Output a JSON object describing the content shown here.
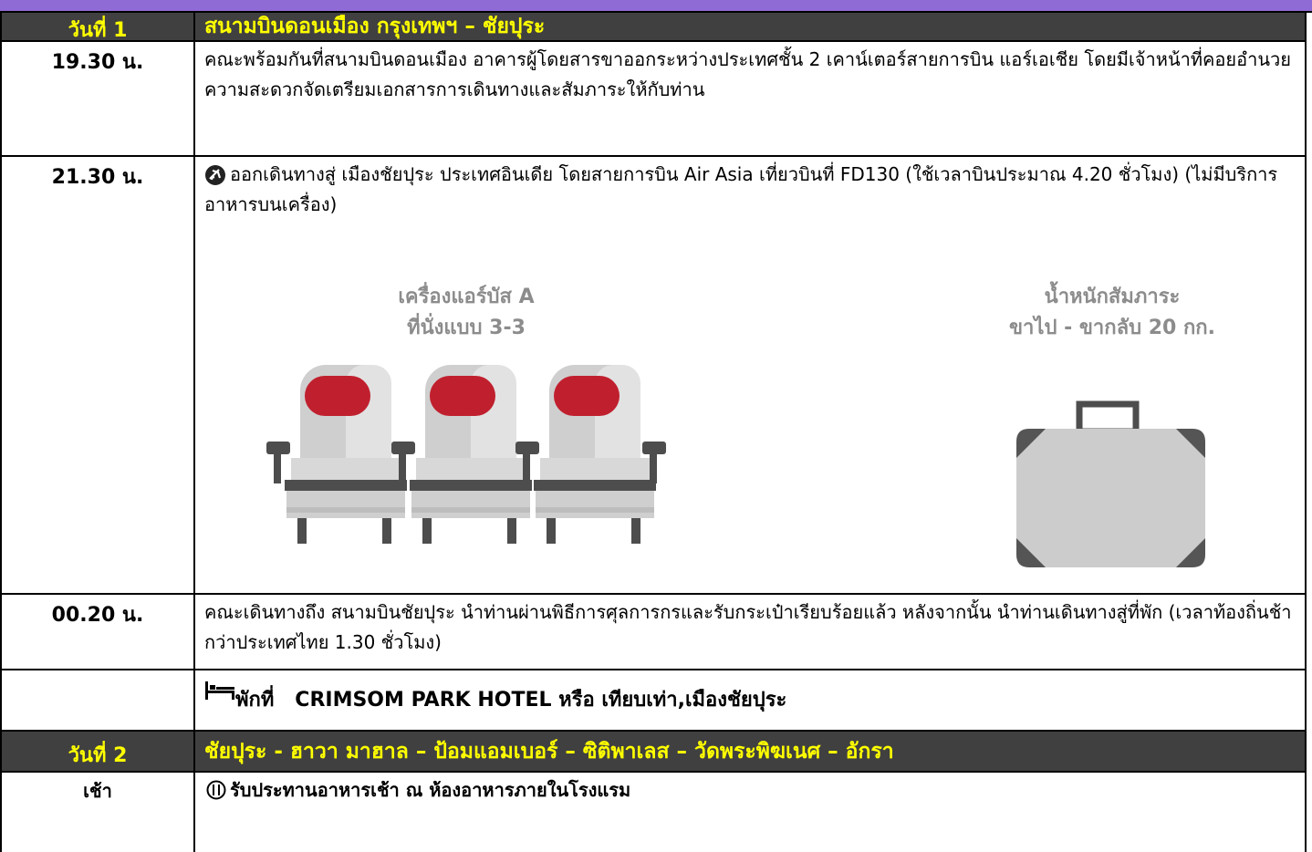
{
  "days": [
    {
      "label": "วันที่ 1",
      "title": "สนามบินดอนเมือง กรุงเทพฯ – ชัยปุระ",
      "rows": [
        {
          "time": "19.30 น.",
          "text": "คณะพร้อมกันที่สนามบินดอนเมือง อาคารผู้โดยสารขาออกระหว่างประเทศชั้น 2 เคาน์เตอร์สายการบิน แอร์เอเชีย โดยมีเจ้าหน้าที่คอยอำนวยความสะดวกจัดเตรียมเอกสารการเดินทางและสัมภาระให้กับท่าน"
        },
        {
          "time": "21.30 น.",
          "text": "ออกเดินทางสู่ เมืองชัยปุระ ประเทศอินเดีย โดยสายการบิน Air Asia เที่ยวบินที่ FD130 (ใช้เวลาบินประมาณ 4.20 ชั่วโมง)   (ไม่มีบริการอาหารบนเครื่อง)",
          "aircraft": [
            "เครื่องแอร์บัส A",
            "ที่นั่งแบบ 3-3"
          ],
          "baggage": [
            "น้ำหนักสัมภาระ",
            "ขาไป - ขากลับ 20 กก."
          ]
        },
        {
          "time": "00.20 น.",
          "text": "คณะเดินทางถึง สนามบินชัยปุระ นำท่านผ่านพิธีการศุลการกรและรับกระเป๋าเรียบร้อยแล้ว หลังจากนั้น นำท่านเดินทางสู่ที่พัก (เวลาท้องถิ่นช้ากว่าประเทศไทย 1.30 ชั่วโมง)"
        },
        {
          "text": "พักที่   CRIMSOM PARK HOTEL หรือ เทียบเท่า,เมืองชัยปุระ"
        }
      ]
    },
    {
      "label": "วันที่ 2",
      "title": "ชัยปุระ - ฮาวา มาฮาล – ป้อมแอมเบอร์ – ซิติพาเลส – วัดพระพิฆเนศ – อักรา",
      "rows": [
        {
          "time": "เช้า",
          "text": "รับประทานอาหารเช้า ณ ห้องอาหารภายในโรงแรม"
        }
      ]
    }
  ]
}
